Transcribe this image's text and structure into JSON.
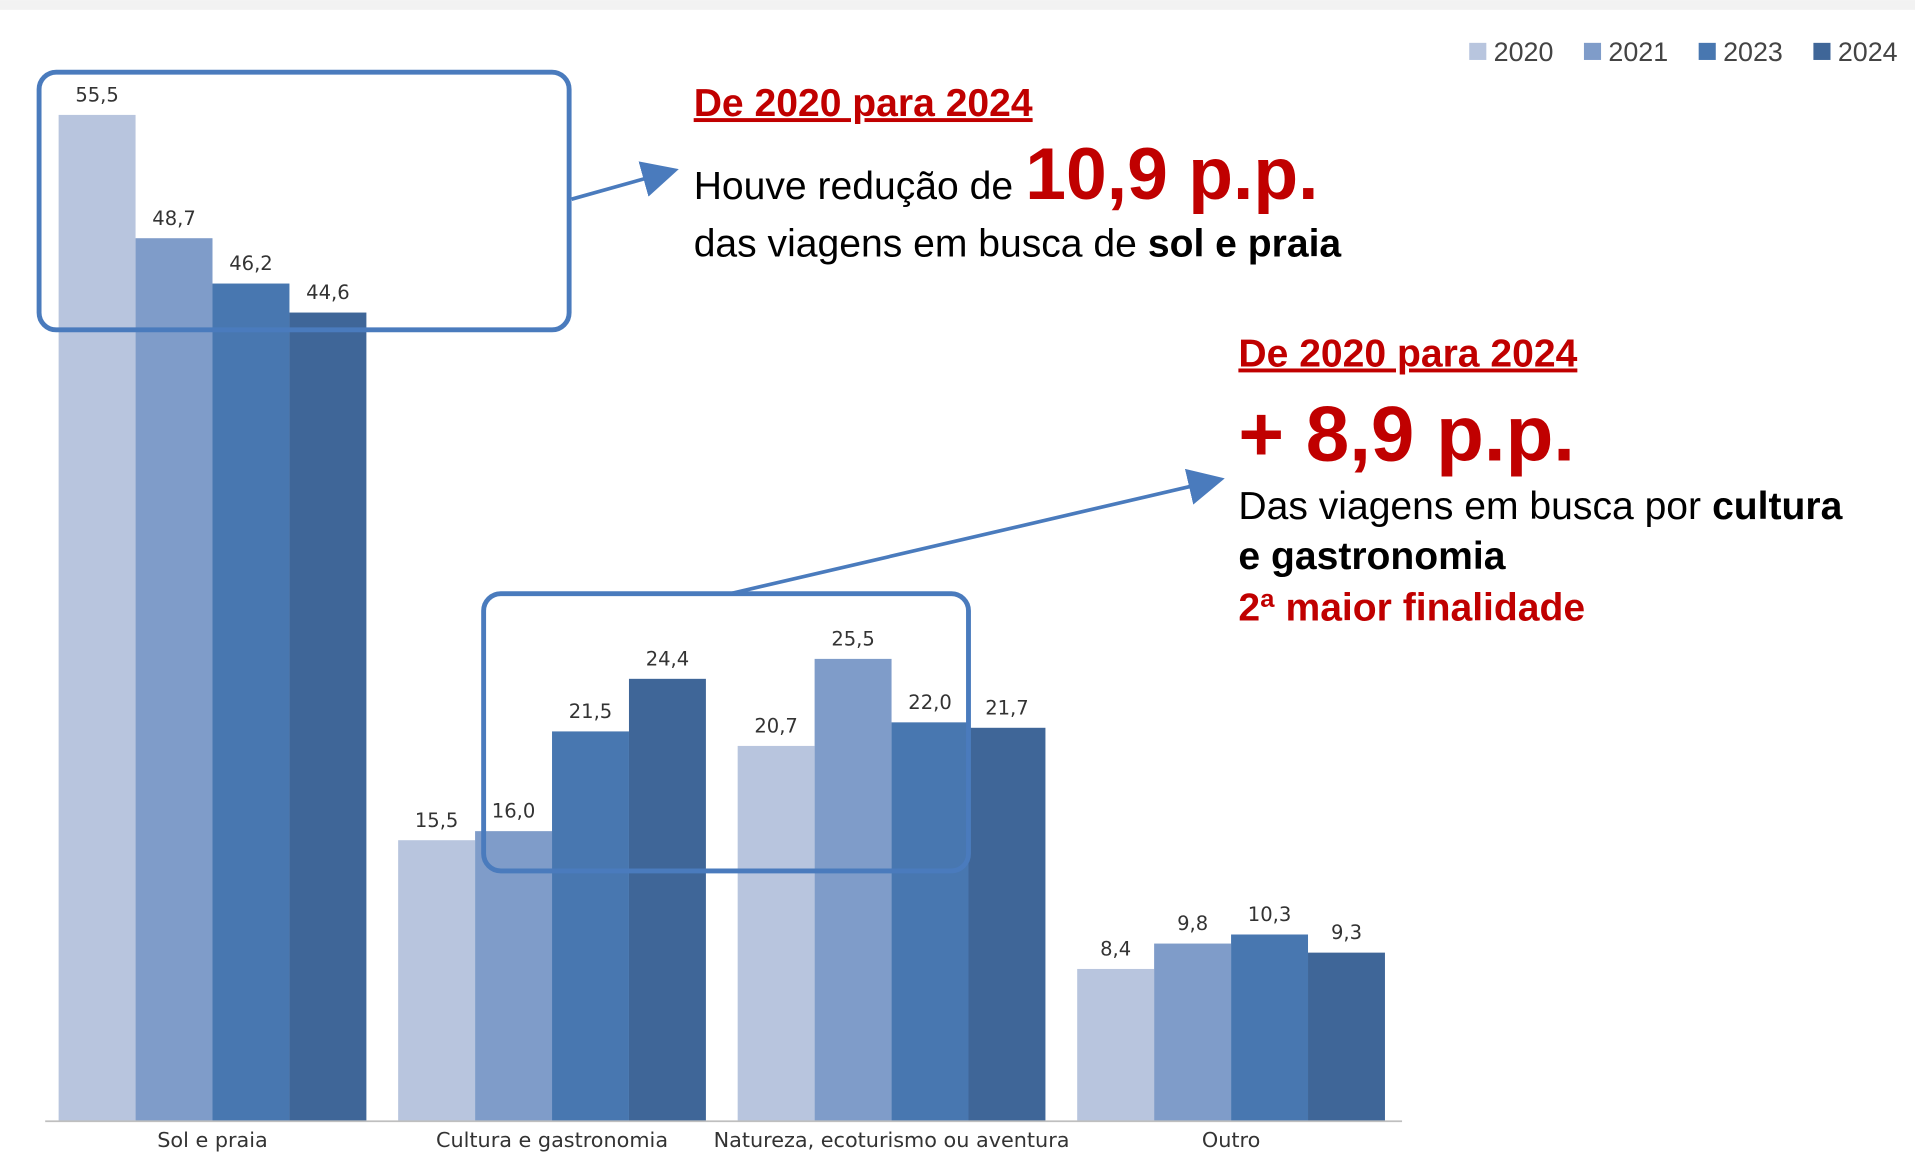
{
  "chart_data": {
    "type": "bar",
    "categories": [
      "Sol e praia",
      "Cultura e gastronomia",
      "Natureza, ecoturismo ou aventura",
      "Outro"
    ],
    "series": [
      {
        "name": "2020",
        "color": "#b8c5de",
        "values": [
          55.5,
          15.5,
          20.7,
          8.4
        ],
        "value_labels": [
          "55,5",
          "15,5",
          "20,7",
          "8,4"
        ]
      },
      {
        "name": "2021",
        "color": "#7f9cc9",
        "values": [
          48.7,
          16.0,
          25.5,
          9.8
        ],
        "value_labels": [
          "48,7",
          "16,0",
          "25,5",
          "9,8"
        ]
      },
      {
        "name": "2023",
        "color": "#4877b0",
        "values": [
          46.2,
          21.5,
          22.0,
          10.3
        ],
        "value_labels": [
          "46,2",
          "21,5",
          "22,0",
          "10,3"
        ]
      },
      {
        "name": "2024",
        "color": "#3f6698",
        "values": [
          44.6,
          24.4,
          21.7,
          9.3
        ],
        "value_labels": [
          "44,6",
          "24,4",
          "21,7",
          "9,3"
        ]
      }
    ],
    "legend": "top-right",
    "annotations": [
      {
        "heading": "De 2020 para 2024",
        "lines": [
          [
            "Houve redução de",
            "10,9 p.p."
          ],
          [
            "das viagens em busca de",
            "sol e praia"
          ]
        ]
      },
      {
        "heading": "De 2020 para 2024",
        "lines": [
          [
            "+ 8,9 p.p."
          ],
          [
            "Das viagens em busca por",
            "cultura"
          ],
          [
            "e gastronomia"
          ],
          [
            "2ª maior finalidade"
          ]
        ]
      }
    ]
  }
}
